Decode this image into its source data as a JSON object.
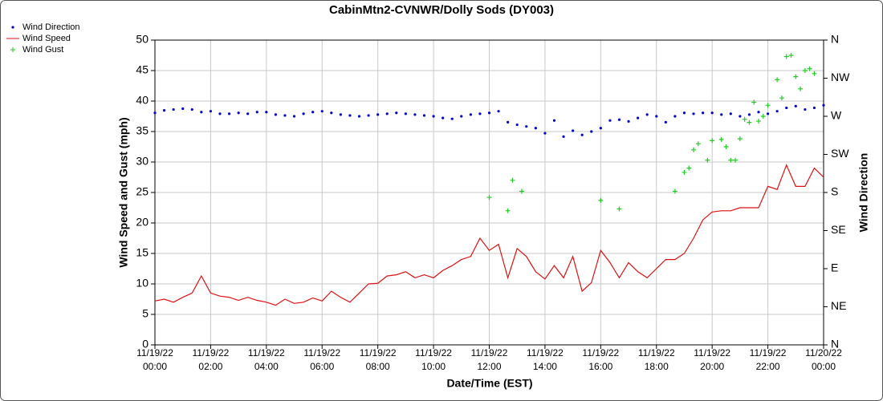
{
  "chart_data": {
    "type": "line",
    "title": "CabinMtn2-CVNWR/Dolly Sods (DY003)",
    "xlabel": "Date/Time (EST)",
    "ylabel": "Wind Speed and Gust (mph)",
    "y2label": "Wind Direction",
    "xlim": [
      "11/19/22 00:00",
      "11/20/22 00:00"
    ],
    "xticks": [
      "11/19/22 00:00",
      "11/19/22 02:00",
      "11/19/22 04:00",
      "11/19/22 06:00",
      "11/19/22 08:00",
      "11/19/22 10:00",
      "11/19/22 12:00",
      "11/19/22 14:00",
      "11/19/22 16:00",
      "11/19/22 18:00",
      "11/19/22 20:00",
      "11/19/22 22:00",
      "11/20/22 00:00"
    ],
    "ylim": [
      0,
      50
    ],
    "yticks": [
      0,
      5,
      10,
      15,
      20,
      25,
      30,
      35,
      40,
      45,
      50
    ],
    "y2lim": [
      0,
      360
    ],
    "y2ticks": [
      {
        "value": 0,
        "label": "N"
      },
      {
        "value": 45,
        "label": "NE"
      },
      {
        "value": 90,
        "label": "E"
      },
      {
        "value": 135,
        "label": "SE"
      },
      {
        "value": 180,
        "label": "S"
      },
      {
        "value": 225,
        "label": "SW"
      },
      {
        "value": 270,
        "label": "W"
      },
      {
        "value": 315,
        "label": "NW"
      },
      {
        "value": 360,
        "label": "N"
      }
    ],
    "grid": true,
    "legend": "top-left",
    "series": [
      {
        "name": "Wind Direction",
        "color": "#0000cc",
        "marker": "dot",
        "axis": "y2",
        "x": [
          "11/19/22 00:00",
          "11/19/22 00:20",
          "11/19/22 00:40",
          "11/19/22 01:00",
          "11/19/22 01:20",
          "11/19/22 01:40",
          "11/19/22 02:00",
          "11/19/22 02:20",
          "11/19/22 02:40",
          "11/19/22 03:00",
          "11/19/22 03:20",
          "11/19/22 03:40",
          "11/19/22 04:00",
          "11/19/22 04:20",
          "11/19/22 04:40",
          "11/19/22 05:00",
          "11/19/22 05:20",
          "11/19/22 05:40",
          "11/19/22 06:00",
          "11/19/22 06:20",
          "11/19/22 06:40",
          "11/19/22 07:00",
          "11/19/22 07:20",
          "11/19/22 07:40",
          "11/19/22 08:00",
          "11/19/22 08:20",
          "11/19/22 08:40",
          "11/19/22 09:00",
          "11/19/22 09:20",
          "11/19/22 09:40",
          "11/19/22 10:00",
          "11/19/22 10:20",
          "11/19/22 10:40",
          "11/19/22 11:00",
          "11/19/22 11:20",
          "11/19/22 11:40",
          "11/19/22 12:00",
          "11/19/22 12:20",
          "11/19/22 12:40",
          "11/19/22 13:00",
          "11/19/22 13:20",
          "11/19/22 13:40",
          "11/19/22 14:00",
          "11/19/22 14:20",
          "11/19/22 14:40",
          "11/19/22 15:00",
          "11/19/22 15:20",
          "11/19/22 15:40",
          "11/19/22 16:00",
          "11/19/22 16:20",
          "11/19/22 16:40",
          "11/19/22 17:00",
          "11/19/22 17:20",
          "11/19/22 17:40",
          "11/19/22 18:00",
          "11/19/22 18:20",
          "11/19/22 18:40",
          "11/19/22 19:00",
          "11/19/22 19:20",
          "11/19/22 19:40",
          "11/19/22 20:00",
          "11/19/22 20:20",
          "11/19/22 20:40",
          "11/19/22 21:00",
          "11/19/22 21:20",
          "11/19/22 21:40",
          "11/19/22 22:00",
          "11/19/22 22:20",
          "11/19/22 22:40",
          "11/19/22 23:00",
          "11/19/22 23:20",
          "11/19/22 23:40",
          "11/20/22 00:00"
        ],
        "values": [
          274,
          277,
          278,
          279,
          278,
          275,
          276,
          273,
          273,
          274,
          273,
          275,
          275,
          272,
          271,
          270,
          273,
          275,
          276,
          274,
          272,
          271,
          270,
          271,
          272,
          273,
          274,
          273,
          272,
          271,
          270,
          268,
          267,
          270,
          272,
          273,
          274,
          276,
          263,
          260,
          258,
          256,
          250,
          265,
          246,
          253,
          248,
          252,
          256,
          265,
          266,
          264,
          268,
          272,
          270,
          263,
          270,
          274,
          273,
          274,
          274,
          272,
          273,
          270,
          272,
          275,
          273,
          276,
          280,
          282,
          278,
          280,
          283
        ]
      },
      {
        "name": "Wind Speed",
        "color": "#dd1111",
        "marker": "line",
        "axis": "y",
        "x": [
          "11/19/22 00:00",
          "11/19/22 00:20",
          "11/19/22 00:40",
          "11/19/22 01:00",
          "11/19/22 01:20",
          "11/19/22 01:40",
          "11/19/22 02:00",
          "11/19/22 02:20",
          "11/19/22 02:40",
          "11/19/22 03:00",
          "11/19/22 03:20",
          "11/19/22 03:40",
          "11/19/22 04:00",
          "11/19/22 04:20",
          "11/19/22 04:40",
          "11/19/22 05:00",
          "11/19/22 05:20",
          "11/19/22 05:40",
          "11/19/22 06:00",
          "11/19/22 06:20",
          "11/19/22 06:40",
          "11/19/22 07:00",
          "11/19/22 07:20",
          "11/19/22 07:40",
          "11/19/22 08:00",
          "11/19/22 08:20",
          "11/19/22 08:40",
          "11/19/22 09:00",
          "11/19/22 09:20",
          "11/19/22 09:40",
          "11/19/22 10:00",
          "11/19/22 10:20",
          "11/19/22 10:40",
          "11/19/22 11:00",
          "11/19/22 11:20",
          "11/19/22 11:40",
          "11/19/22 12:00",
          "11/19/22 12:20",
          "11/19/22 12:40",
          "11/19/22 13:00",
          "11/19/22 13:20",
          "11/19/22 13:40",
          "11/19/22 14:00",
          "11/19/22 14:20",
          "11/19/22 14:40",
          "11/19/22 15:00",
          "11/19/22 15:20",
          "11/19/22 15:40",
          "11/19/22 16:00",
          "11/19/22 16:20",
          "11/19/22 16:40",
          "11/19/22 17:00",
          "11/19/22 17:20",
          "11/19/22 17:40",
          "11/19/22 18:00",
          "11/19/22 18:20",
          "11/19/22 18:40",
          "11/19/22 19:00",
          "11/19/22 19:20",
          "11/19/22 19:40",
          "11/19/22 20:00",
          "11/19/22 20:20",
          "11/19/22 20:40",
          "11/19/22 21:00",
          "11/19/22 21:20",
          "11/19/22 21:40",
          "11/19/22 22:00",
          "11/19/22 22:20",
          "11/19/22 22:40",
          "11/19/22 23:00",
          "11/19/22 23:20",
          "11/19/22 23:40",
          "11/20/22 00:00"
        ],
        "values": [
          7.2,
          7.5,
          7.0,
          7.8,
          8.5,
          11.3,
          8.5,
          8.0,
          7.8,
          7.3,
          7.8,
          7.3,
          7.0,
          6.5,
          7.5,
          6.8,
          7.0,
          7.7,
          7.2,
          8.8,
          7.8,
          7.0,
          8.5,
          10.0,
          10.1,
          11.3,
          11.5,
          12.0,
          11.0,
          11.5,
          11.0,
          12.2,
          13.0,
          14.0,
          14.5,
          17.5,
          15.5,
          16.5,
          11.0,
          15.8,
          14.5,
          12.0,
          10.8,
          13.0,
          11.0,
          14.5,
          8.8,
          10.2,
          15.5,
          13.5,
          11.0,
          13.5,
          12.0,
          11.0,
          12.5,
          14.0,
          14.0,
          15.0,
          17.5,
          20.5,
          21.8,
          22.0,
          22.0,
          22.5,
          22.5,
          22.5,
          26.0,
          25.5,
          29.5,
          26.0,
          26.0,
          29.0,
          27.5
        ]
      },
      {
        "name": "Wind Gust",
        "color": "#22cc22",
        "marker": "plus",
        "axis": "y",
        "x": [
          "11/19/22 12:00",
          "11/19/22 12:40",
          "11/19/22 12:50",
          "11/19/22 13:10",
          "11/19/22 16:00",
          "11/19/22 16:40",
          "11/19/22 18:40",
          "11/19/22 19:00",
          "11/19/22 19:10",
          "11/19/22 19:20",
          "11/19/22 19:30",
          "11/19/22 19:50",
          "11/19/22 20:00",
          "11/19/22 20:20",
          "11/19/22 20:30",
          "11/19/22 20:40",
          "11/19/22 20:50",
          "11/19/22 21:00",
          "11/19/22 21:10",
          "11/19/22 21:20",
          "11/19/22 21:30",
          "11/19/22 21:40",
          "11/19/22 21:50",
          "11/19/22 22:00",
          "11/19/22 22:20",
          "11/19/22 22:30",
          "11/19/22 22:40",
          "11/19/22 22:50",
          "11/19/22 23:00",
          "11/19/22 23:10",
          "11/19/22 23:20",
          "11/19/22 23:30",
          "11/19/22 23:40"
        ],
        "values": [
          24.2,
          22.0,
          27.0,
          25.2,
          23.7,
          22.3,
          25.2,
          28.3,
          29.0,
          32.0,
          33.0,
          30.3,
          33.5,
          33.7,
          32.5,
          30.3,
          30.3,
          33.8,
          37.0,
          36.5,
          39.8,
          36.7,
          37.5,
          39.3,
          43.5,
          40.5,
          47.3,
          47.5,
          44.0,
          42.0,
          45.0,
          45.3,
          44.5
        ]
      }
    ]
  }
}
